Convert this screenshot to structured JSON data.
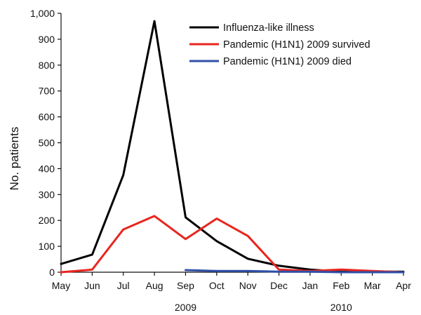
{
  "chart_data": {
    "type": "line",
    "categories": [
      "May",
      "Jun",
      "Jul",
      "Aug",
      "Sep",
      "Oct",
      "Nov",
      "Dec",
      "Jan",
      "Feb",
      "Mar",
      "Apr"
    ],
    "year_labels": [
      {
        "label": "2009",
        "at_category": "Sep"
      },
      {
        "label": "2010",
        "at_category": "Feb"
      }
    ],
    "series": [
      {
        "name": "Influenza-like illness",
        "color": "#000000",
        "values": [
          32,
          68,
          375,
          970,
          212,
          120,
          52,
          25,
          10,
          2,
          2,
          2
        ]
      },
      {
        "name": "Pandemic (H1N1) 2009 survived",
        "color": "#e8261e",
        "values": [
          0,
          10,
          165,
          217,
          128,
          207,
          140,
          10,
          5,
          10,
          5,
          0
        ]
      },
      {
        "name": "Pandemic (H1N1) 2009 died",
        "color": "#2f4fa8",
        "values": [
          null,
          null,
          null,
          null,
          8,
          5,
          5,
          2,
          2,
          0,
          0,
          0
        ]
      }
    ],
    "ylabel": "No. patients",
    "xlabel": "",
    "ylim": [
      0,
      1000
    ],
    "yticks": [
      0,
      100,
      200,
      300,
      400,
      500,
      600,
      700,
      800,
      900,
      1000
    ],
    "ytick_labels": [
      "0",
      "100",
      "200",
      "300",
      "400",
      "500",
      "600",
      "700",
      "800",
      "900",
      "1,000"
    ],
    "legend_position": "top-right",
    "grid": false
  }
}
